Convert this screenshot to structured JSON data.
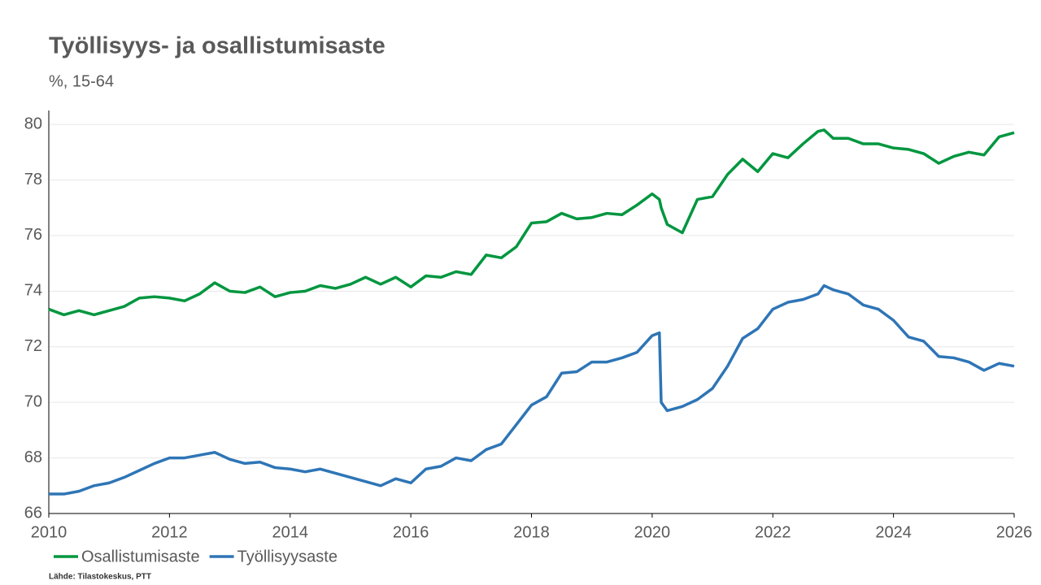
{
  "chart_data": {
    "type": "line",
    "title": "Työllisyys- ja osallistumisaste",
    "subtitle": "%, 15-64",
    "source": "Lähde: Tilastokeskus, PTT",
    "x": [
      2010,
      2010.25,
      2010.5,
      2010.75,
      2011,
      2011.25,
      2011.5,
      2011.75,
      2012,
      2012.25,
      2012.5,
      2012.75,
      2013,
      2013.25,
      2013.5,
      2013.75,
      2014,
      2014.25,
      2014.5,
      2014.75,
      2015,
      2015.25,
      2015.5,
      2015.75,
      2016,
      2016.25,
      2016.5,
      2016.75,
      2017,
      2017.25,
      2017.5,
      2017.75,
      2018,
      2018.25,
      2018.5,
      2018.75,
      2019,
      2019.25,
      2019.5,
      2019.75,
      2020,
      2020.12,
      2020.15,
      2020.25,
      2020.5,
      2020.75,
      2021,
      2021.25,
      2021.5,
      2021.75,
      2022,
      2022.25,
      2022.5,
      2022.75,
      2022.85,
      2023,
      2023.25,
      2023.5,
      2023.75,
      2024,
      2024.25,
      2024.5,
      2024.75,
      2025,
      2025.25,
      2025.5,
      2025.75,
      2026
    ],
    "series": [
      {
        "name": "Osallistumisaste",
        "color": "#00963f",
        "values": [
          73.35,
          73.15,
          73.3,
          73.15,
          73.3,
          73.45,
          73.75,
          73.8,
          73.75,
          73.65,
          73.9,
          74.3,
          74.0,
          73.95,
          74.15,
          73.8,
          73.95,
          74.0,
          74.2,
          74.1,
          74.25,
          74.5,
          74.25,
          74.5,
          74.15,
          74.55,
          74.5,
          74.7,
          74.6,
          75.3,
          75.2,
          75.6,
          76.45,
          76.5,
          76.8,
          76.6,
          76.65,
          76.8,
          76.75,
          77.1,
          77.5,
          77.3,
          77.0,
          76.4,
          76.1,
          77.3,
          77.4,
          78.2,
          78.75,
          78.3,
          78.95,
          78.8,
          79.3,
          79.75,
          79.8,
          79.5,
          79.5,
          79.3,
          79.3,
          79.15,
          79.1,
          78.95,
          78.6,
          78.85,
          79.0,
          78.9,
          79.55,
          79.7
        ]
      },
      {
        "name": "Työllisyysaste",
        "color": "#2e75b6",
        "values": [
          66.7,
          66.7,
          66.8,
          67.0,
          67.1,
          67.3,
          67.55,
          67.8,
          68.0,
          68.0,
          68.1,
          68.2,
          67.95,
          67.8,
          67.85,
          67.65,
          67.6,
          67.5,
          67.6,
          67.45,
          67.3,
          67.15,
          67.0,
          67.25,
          67.1,
          67.6,
          67.7,
          68.0,
          67.9,
          68.3,
          68.5,
          69.2,
          69.9,
          70.2,
          71.05,
          71.1,
          71.45,
          71.45,
          71.6,
          71.8,
          72.4,
          72.5,
          70.0,
          69.7,
          69.85,
          70.1,
          70.5,
          71.3,
          72.3,
          72.65,
          73.35,
          73.6,
          73.7,
          73.9,
          74.2,
          74.05,
          73.9,
          73.5,
          73.35,
          72.95,
          72.35,
          72.2,
          71.65,
          71.6,
          71.45,
          71.15,
          71.4,
          71.3
        ]
      }
    ],
    "xlim": [
      2010,
      2026
    ],
    "xticks": [
      2010,
      2012,
      2014,
      2016,
      2018,
      2020,
      2022,
      2024,
      2026
    ],
    "ylim": [
      66,
      80.5
    ],
    "yticks": [
      66,
      68,
      70,
      72,
      74,
      76,
      78,
      80
    ],
    "grid": true,
    "legend": "bottom-left"
  }
}
